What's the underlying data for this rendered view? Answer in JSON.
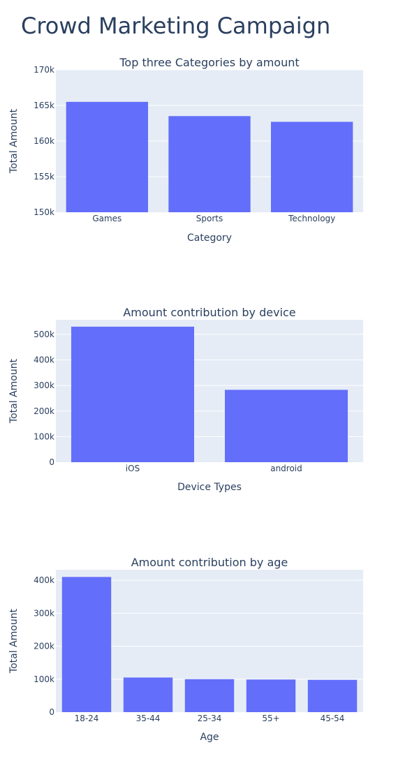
{
  "title": "Crowd Marketing Campaign",
  "colors": {
    "bar": "#636efa",
    "plot_bg": "#e5ecf6",
    "grid": "#ffffff",
    "text": "#2a3f5f"
  },
  "chart_data": [
    {
      "type": "bar",
      "title": "Top three Categories by amount",
      "xlabel": "Category",
      "ylabel": "Total Amount",
      "categories": [
        "Games",
        "Sports",
        "Technology"
      ],
      "values": [
        165500,
        163500,
        162700
      ],
      "ylim": [
        150000,
        170000
      ],
      "yticks": [
        150000,
        155000,
        160000,
        165000,
        170000
      ],
      "ytick_labels": [
        "150k",
        "155k",
        "160k",
        "165k",
        "170k"
      ],
      "grid": true
    },
    {
      "type": "bar",
      "title": "Amount contribution by device",
      "xlabel": "Device Types",
      "ylabel": "Total Amount",
      "categories": [
        "iOS",
        "android"
      ],
      "values": [
        530000,
        283000
      ],
      "ylim": [
        0,
        557000
      ],
      "yticks": [
        0,
        100000,
        200000,
        300000,
        400000,
        500000
      ],
      "ytick_labels": [
        "0",
        "100k",
        "200k",
        "300k",
        "400k",
        "500k"
      ],
      "grid": true
    },
    {
      "type": "bar",
      "title": "Amount contribution by age",
      "xlabel": "Age",
      "ylabel": "Total Amount",
      "categories": [
        "18-24",
        "35-44",
        "25-34",
        "55+",
        "45-54"
      ],
      "values": [
        410000,
        105000,
        100000,
        99000,
        98000
      ],
      "ylim": [
        0,
        432000
      ],
      "yticks": [
        0,
        100000,
        200000,
        300000,
        400000
      ],
      "ytick_labels": [
        "0",
        "100k",
        "200k",
        "300k",
        "400k"
      ],
      "grid": true
    }
  ]
}
